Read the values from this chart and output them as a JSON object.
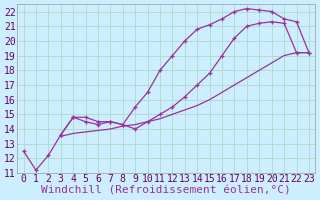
{
  "xlabel": "Windchill (Refroidissement éolien,°C)",
  "xlim": [
    -0.5,
    23.5
  ],
  "ylim": [
    11,
    22.5
  ],
  "xticks": [
    0,
    1,
    2,
    3,
    4,
    5,
    6,
    7,
    8,
    9,
    10,
    11,
    12,
    13,
    14,
    15,
    16,
    17,
    18,
    19,
    20,
    21,
    22,
    23
  ],
  "yticks": [
    11,
    12,
    13,
    14,
    15,
    16,
    17,
    18,
    19,
    20,
    21,
    22
  ],
  "bg_color": "#cceeff",
  "grid_color": "#b0ddcc",
  "line_color": "#993399",
  "series": [
    {
      "x": [
        0,
        1,
        2,
        3,
        4,
        5,
        6,
        7,
        8,
        9,
        10,
        11,
        12,
        13,
        14,
        15,
        16,
        17,
        18,
        19,
        20,
        21,
        22,
        23
      ],
      "y": [
        12.5,
        11.2,
        12.2,
        13.6,
        14.8,
        14.8,
        14.5,
        14.5,
        14.3,
        15.5,
        16.5,
        18.0,
        19.0,
        20.0,
        20.8,
        21.1,
        21.5,
        22.0,
        22.2,
        22.1,
        22.0,
        21.5,
        21.3,
        19.2
      ],
      "marker": "+"
    },
    {
      "x": [
        3,
        4,
        5,
        6,
        7,
        8,
        9,
        10,
        11,
        12,
        13,
        14,
        15,
        16,
        17,
        18,
        19,
        20,
        21,
        22,
        23
      ],
      "y": [
        13.6,
        14.8,
        14.5,
        14.3,
        14.5,
        14.3,
        14.0,
        14.5,
        15.0,
        15.5,
        16.2,
        17.0,
        17.8,
        19.0,
        20.2,
        21.0,
        21.2,
        21.3,
        21.2,
        19.2,
        19.2
      ],
      "marker": "+"
    },
    {
      "x": [
        3,
        4,
        5,
        6,
        7,
        8,
        9,
        10,
        11,
        12,
        13,
        14,
        15,
        16,
        17,
        18,
        19,
        20,
        21,
        22,
        23
      ],
      "y": [
        13.5,
        13.7,
        13.8,
        13.9,
        14.0,
        14.2,
        14.3,
        14.5,
        14.7,
        15.0,
        15.3,
        15.6,
        16.0,
        16.5,
        17.0,
        17.5,
        18.0,
        18.5,
        19.0,
        19.2,
        19.2
      ],
      "marker": null
    }
  ],
  "font_family": "monospace",
  "tick_fontsize": 7,
  "xlabel_fontsize": 8
}
